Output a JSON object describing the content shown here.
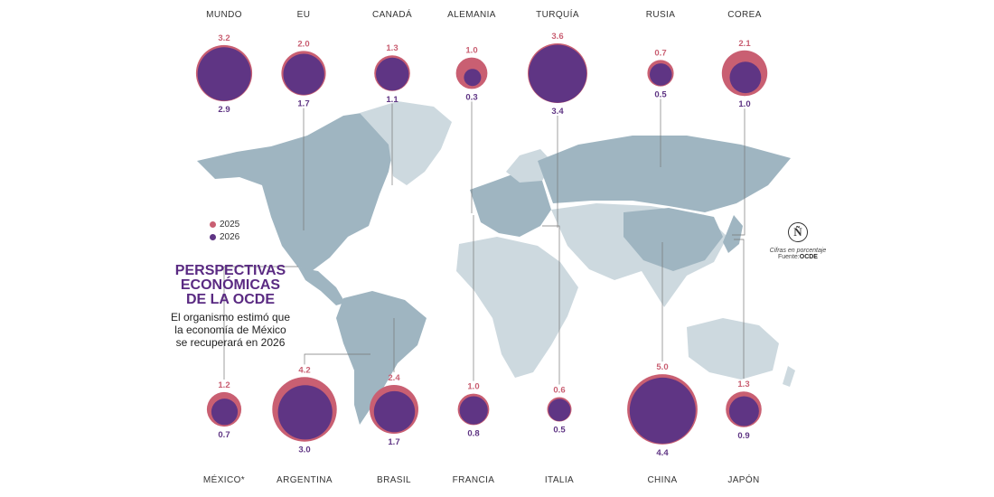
{
  "title": "PERSPECTIVAS\nECONÓMICAS\nDE LA OCDE",
  "subtitle": "El organismo estimó que\nla economía de México\nse recuperará en 2026",
  "note": "Cifras en porcentaje",
  "source_label": "Fuente:",
  "source_name": "OCDE",
  "logo_text": "Ñ",
  "colors": {
    "y2025": "#c95f72",
    "y2026": "#5f3584",
    "land": "#9fb5c1",
    "land_light": "#cdd9df",
    "leader": "#777777"
  },
  "chart_data": {
    "type": "bubble",
    "title": "PERSPECTIVAS ECONÓMICAS DE LA OCDE",
    "legend": [
      "2025",
      "2026"
    ],
    "series": [
      {
        "name": "2025",
        "color": "#c95f72"
      },
      {
        "name": "2026",
        "color": "#5f3584"
      }
    ],
    "countries": [
      {
        "name": "MUNDO",
        "v2025": 3.2,
        "v2026": 2.9,
        "row": "top"
      },
      {
        "name": "EU",
        "v2025": 2.0,
        "v2026": 1.7,
        "row": "top"
      },
      {
        "name": "CANADÁ",
        "v2025": 1.3,
        "v2026": 1.1,
        "row": "top"
      },
      {
        "name": "ALEMANIA",
        "v2025": 1.0,
        "v2026": 0.3,
        "row": "top"
      },
      {
        "name": "TURQUÍA",
        "v2025": 3.6,
        "v2026": 3.4,
        "row": "top"
      },
      {
        "name": "RUSIA",
        "v2025": 0.7,
        "v2026": 0.5,
        "row": "top"
      },
      {
        "name": "COREA",
        "v2025": 2.1,
        "v2026": 1.0,
        "row": "top"
      },
      {
        "name": "MÉXICO*",
        "v2025": 1.2,
        "v2026": 0.7,
        "row": "bottom"
      },
      {
        "name": "ARGENTINA",
        "v2025": 4.2,
        "v2026": 3.0,
        "row": "bottom"
      },
      {
        "name": "BRASIL",
        "v2025": 2.4,
        "v2026": 1.7,
        "row": "bottom"
      },
      {
        "name": "FRANCIA",
        "v2025": 1.0,
        "v2026": 0.8,
        "row": "bottom"
      },
      {
        "name": "ITALIA",
        "v2025": 0.6,
        "v2026": 0.5,
        "row": "bottom"
      },
      {
        "name": "CHINA",
        "v2025": 5.0,
        "v2026": 4.4,
        "row": "bottom"
      },
      {
        "name": "JAPÓN",
        "v2025": 1.3,
        "v2026": 0.9,
        "row": "bottom"
      }
    ]
  }
}
